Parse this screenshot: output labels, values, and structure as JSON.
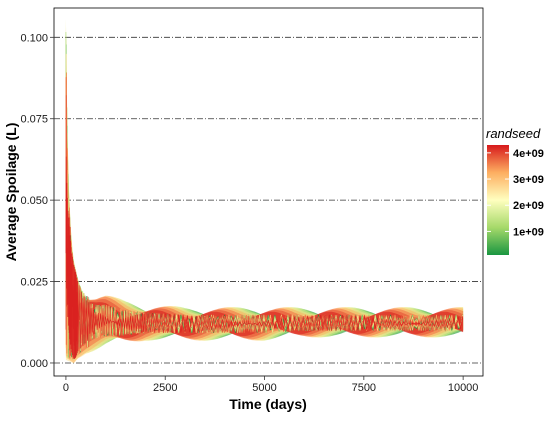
{
  "chart_data": {
    "type": "line",
    "xlabel": "Time (days)",
    "ylabel": "Average Spoilage (L)",
    "xlim": [
      -300,
      10500
    ],
    "ylim": [
      -0.004,
      0.109
    ],
    "x_ticks": [
      0,
      2500,
      5000,
      7500,
      10000
    ],
    "x_tick_labels": [
      "0",
      "2500",
      "5000",
      "7500",
      "10000"
    ],
    "y_ticks": [
      0.0,
      0.025,
      0.05,
      0.075,
      0.1
    ],
    "y_tick_labels": [
      "0.000",
      "0.025",
      "0.050",
      "0.075",
      "0.100"
    ],
    "grid": "horizontal dash-dot major lines",
    "legend": {
      "title": "randseed",
      "placement": "right",
      "type": "colorbar",
      "tick_labels": [
        "1e+09",
        "2e+09",
        "3e+09",
        "4e+09"
      ],
      "tick_values": [
        1000000000,
        2000000000,
        3000000000,
        4000000000
      ],
      "range": [
        100000000,
        4300000000
      ],
      "colors": [
        "#1a9641",
        "#a6d96a",
        "#ffffbf",
        "#fdae61",
        "#d7191c"
      ]
    },
    "series_description_points": {
      "x": [
        0,
        10,
        25,
        50,
        100,
        150,
        200,
        300,
        400,
        500,
        750,
        1000,
        1500,
        2000,
        3000,
        4000,
        5000,
        6000,
        7000,
        8000,
        9000,
        10000
      ],
      "envelope_upper": [
        0.105,
        0.1,
        0.08,
        0.062,
        0.045,
        0.036,
        0.031,
        0.026,
        0.023,
        0.021,
        0.02,
        0.02,
        0.018,
        0.017,
        0.016,
        0.016,
        0.016,
        0.016,
        0.016,
        0.016,
        0.016,
        0.016
      ],
      "envelope_lower": [
        0.0,
        0.0,
        0.0,
        0.0,
        0.0,
        0.0,
        0.0,
        0.002,
        0.003,
        0.004,
        0.005,
        0.006,
        0.007,
        0.008,
        0.008,
        0.008,
        0.008,
        0.009,
        0.009,
        0.009,
        0.009,
        0.009
      ],
      "center": [
        0.05,
        0.04,
        0.035,
        0.03,
        0.025,
        0.02,
        0.018,
        0.016,
        0.015,
        0.014,
        0.013,
        0.013,
        0.012,
        0.012,
        0.012,
        0.012,
        0.012,
        0.012,
        0.012,
        0.012,
        0.012,
        0.012
      ]
    },
    "series": [
      {
        "seed": 200000000,
        "color": "#1a9641",
        "seed_offset": 0.2
      },
      {
        "seed": 700000000,
        "color": "#66bd63",
        "seed_offset": 0.35
      },
      {
        "seed": 1300000000,
        "color": "#a6d96a",
        "seed_offset": 0.5
      },
      {
        "seed": 1800000000,
        "color": "#d9ef8b",
        "seed_offset": 0.65
      },
      {
        "seed": 2300000000,
        "color": "#fee08b",
        "seed_offset": 0.8
      },
      {
        "seed": 2800000000,
        "color": "#fdae61",
        "seed_offset": 0.95
      },
      {
        "seed": 3300000000,
        "color": "#f46d43",
        "seed_offset": 1.1
      },
      {
        "seed": 3800000000,
        "color": "#e34a33",
        "seed_offset": 1.25
      },
      {
        "seed": 4200000000,
        "color": "#d7191c",
        "seed_offset": 1.4
      }
    ]
  }
}
